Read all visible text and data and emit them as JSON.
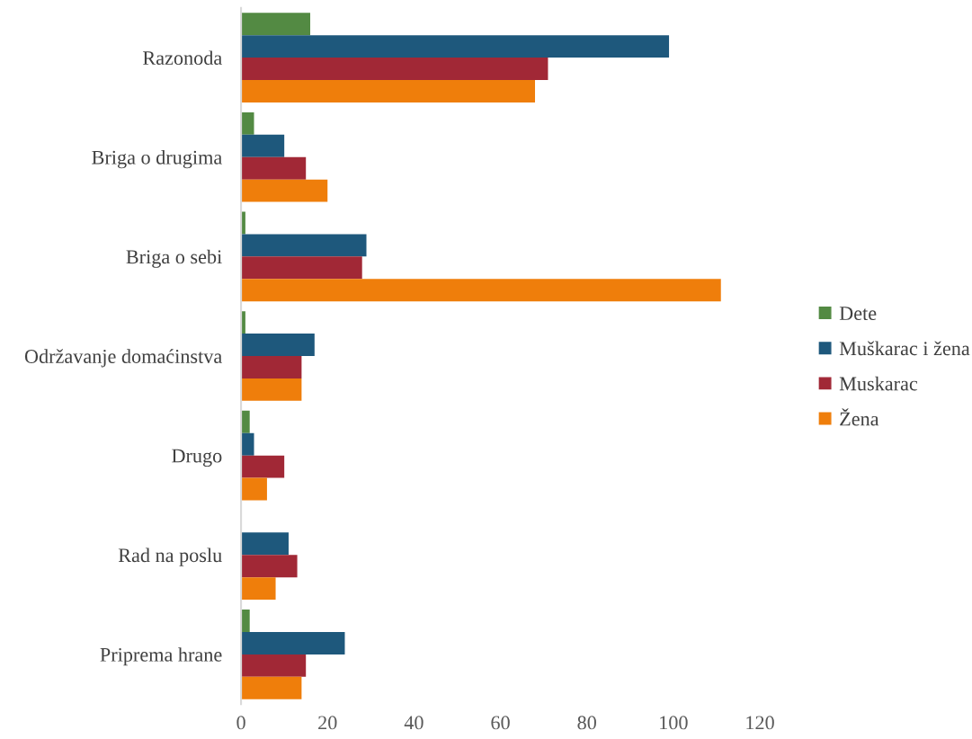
{
  "chart_data": {
    "type": "bar",
    "orientation": "horizontal",
    "categories": [
      "Razonoda",
      "Briga o drugima",
      "Briga o sebi",
      "Održavanje domaćinstva",
      "Drugo",
      "Rad na poslu",
      "Priprema hrane"
    ],
    "series": [
      {
        "name": "Dete",
        "color": "#538a43",
        "values": [
          16,
          3,
          1,
          1,
          2,
          null,
          2
        ]
      },
      {
        "name": "Muškarac i žena",
        "color": "#1e587c",
        "values": [
          99,
          10,
          29,
          17,
          3,
          11,
          24
        ]
      },
      {
        "name": "Muskarac",
        "color": "#a12836",
        "values": [
          71,
          15,
          28,
          14,
          10,
          13,
          15
        ]
      },
      {
        "name": "Žena",
        "color": "#ef7e0b",
        "values": [
          68,
          20,
          111,
          14,
          6,
          8,
          14
        ]
      }
    ],
    "xlim": [
      0,
      120
    ],
    "xticks": [
      0,
      20,
      40,
      60,
      80,
      100,
      120
    ],
    "legend": "right",
    "grid": false
  }
}
